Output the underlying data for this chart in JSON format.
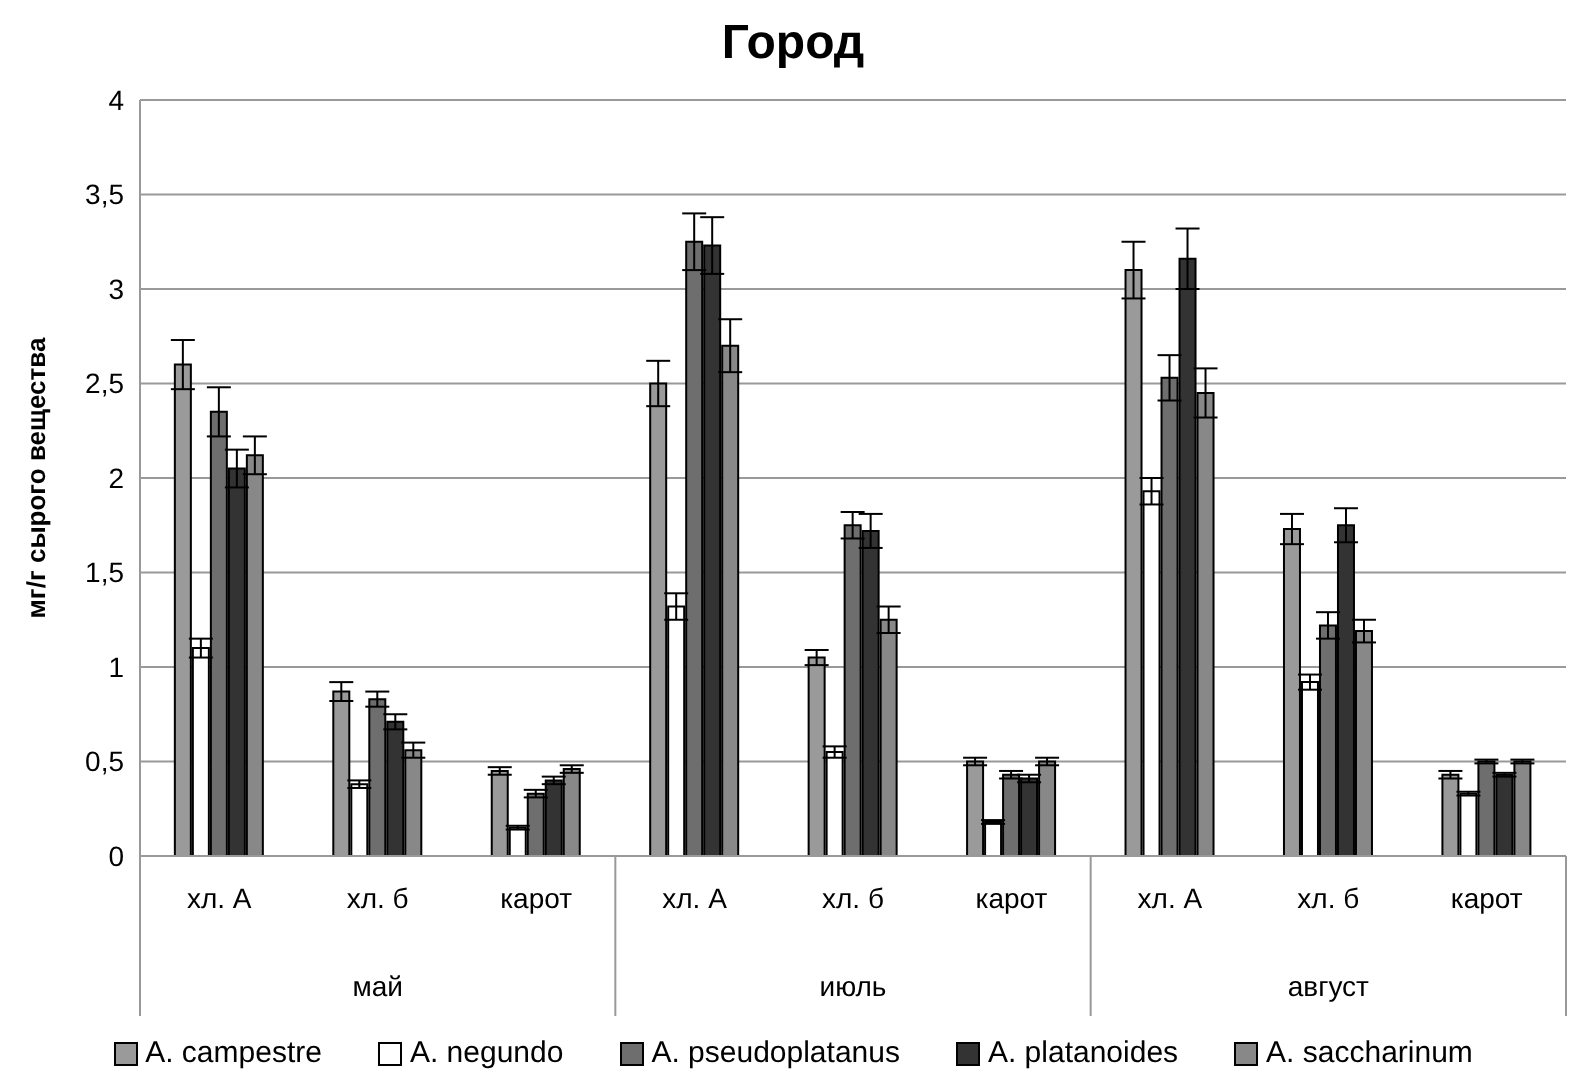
{
  "chart_data": {
    "type": "bar",
    "title": "Город",
    "ylabel": "мг/г сырого вещества",
    "categories": [
      "хл. А",
      "хл. б",
      "карот",
      "хл. А",
      "хл. б",
      "карот",
      "хл. А",
      "хл. б",
      "карот"
    ],
    "annotations": [
      "май",
      "июль",
      "август"
    ],
    "series": [
      {
        "name": "A. campestre",
        "color": "#9a9a9a",
        "values": [
          2.6,
          0.87,
          0.45,
          2.5,
          1.05,
          0.5,
          3.1,
          1.73,
          0.43
        ],
        "errors": [
          0.13,
          0.05,
          0.02,
          0.12,
          0.04,
          0.02,
          0.15,
          0.08,
          0.02
        ]
      },
      {
        "name": "A. negundo",
        "color": "#ffffff",
        "values": [
          1.1,
          0.38,
          0.15,
          1.32,
          0.55,
          0.18,
          1.93,
          0.92,
          0.33
        ],
        "errors": [
          0.05,
          0.02,
          0.01,
          0.07,
          0.03,
          0.01,
          0.07,
          0.04,
          0.01
        ]
      },
      {
        "name": "A. pseudoplatanus",
        "color": "#6e6e6e",
        "values": [
          2.35,
          0.83,
          0.33,
          3.25,
          1.75,
          0.43,
          2.53,
          1.22,
          0.5
        ],
        "errors": [
          0.13,
          0.04,
          0.02,
          0.15,
          0.07,
          0.02,
          0.12,
          0.07,
          0.01
        ]
      },
      {
        "name": "A. platanoides",
        "color": "#333333",
        "values": [
          2.05,
          0.71,
          0.4,
          3.23,
          1.72,
          0.41,
          3.16,
          1.75,
          0.43
        ],
        "errors": [
          0.1,
          0.04,
          0.02,
          0.15,
          0.09,
          0.02,
          0.16,
          0.09,
          0.01
        ]
      },
      {
        "name": "A. saccharinum",
        "color": "#888888",
        "values": [
          2.12,
          0.56,
          0.46,
          2.7,
          1.25,
          0.5,
          2.45,
          1.19,
          0.5
        ],
        "errors": [
          0.1,
          0.04,
          0.02,
          0.14,
          0.07,
          0.02,
          0.13,
          0.06,
          0.01
        ]
      }
    ],
    "ylim": [
      0,
      4
    ],
    "yticks": [
      0,
      {
        "value": 0.5,
        "label": "0,5"
      },
      1,
      {
        "value": 1.5,
        "label": "1,5"
      },
      2,
      {
        "value": 2.5,
        "label": "2,5"
      },
      3,
      {
        "value": 3.5,
        "label": "3,5"
      },
      4
    ],
    "grid": "y",
    "legend": "bottom"
  }
}
